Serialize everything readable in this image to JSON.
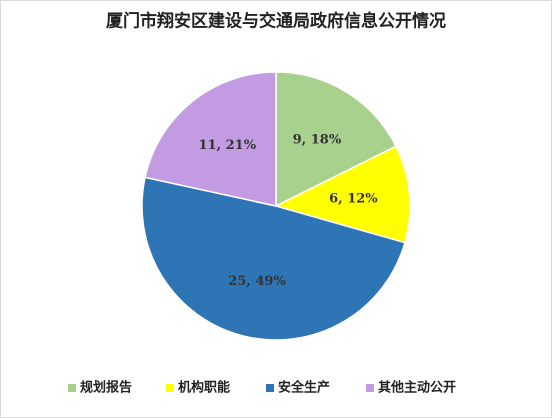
{
  "chart_data": {
    "type": "pie",
    "title": "厦门市翔安区建设与交通局政府信息公开情况",
    "categories": [
      "规划报告",
      "机构职能",
      "安全生产",
      "其他主动公开"
    ],
    "values": [
      9,
      6,
      25,
      11
    ],
    "value_labels": [
      "9, 18%",
      "6, 12%",
      "25, 49%",
      "11, 21%"
    ],
    "colors": [
      "#a9d18e",
      "#ffff00",
      "#2e75b6",
      "#c39be3"
    ],
    "legend": "bottom"
  }
}
